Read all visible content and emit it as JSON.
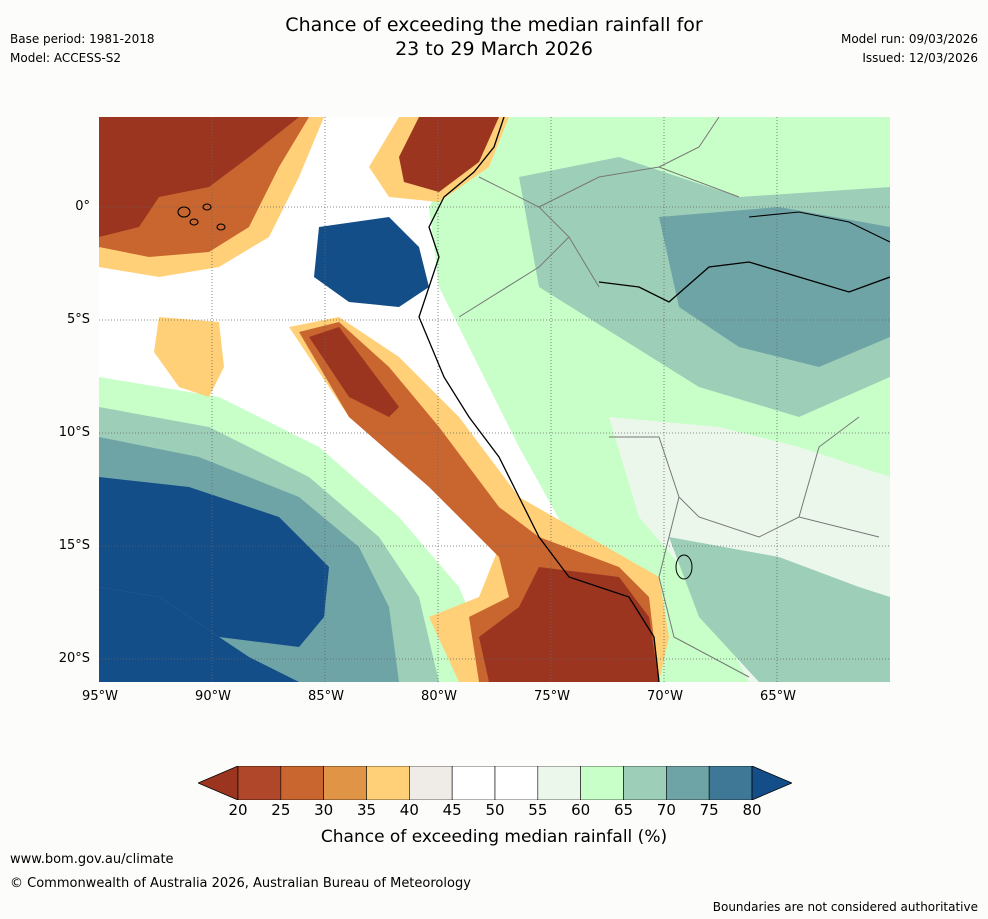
{
  "header": {
    "title_line1": "Chance of exceeding the median rainfall for",
    "title_line2": "23 to 29 March 2026",
    "base_period": "Base period: 1981-2018",
    "model": "Model: ACCESS-S2",
    "model_run": "Model run: 09/03/2026",
    "issued": "Issued: 12/03/2026"
  },
  "map": {
    "region": "western South America and eastern Pacific",
    "lon_range": [
      -95,
      -60.5
    ],
    "lat_range": [
      -21,
      4
    ],
    "lat_labels": [
      "0°",
      "5°S",
      "10°S",
      "15°S",
      "20°S"
    ],
    "lon_labels": [
      "95°W",
      "90°W",
      "85°W",
      "80°W",
      "75°W",
      "70°W",
      "65°W"
    ]
  },
  "colorbar": {
    "ticks": [
      "20",
      "25",
      "30",
      "35",
      "40",
      "45",
      "50",
      "55",
      "60",
      "65",
      "70",
      "75",
      "80"
    ],
    "colors": [
      "#9b3520",
      "#b0472a",
      "#c96630",
      "#e09546",
      "#ffd077",
      "#efebe7",
      "#ffffff",
      "#ffffff",
      "#ecf7ec",
      "#c8ffc8",
      "#9dcfb8",
      "#6fa4a6",
      "#3f7897",
      "#134e88"
    ],
    "title": "Chance of exceeding median rainfall (%)"
  },
  "footer": {
    "website": "www.bom.gov.au/climate",
    "copyright": "© Commonwealth of Australia 2026, Australian Bureau of Meteorology",
    "disclaimer": "Boundaries are not considered authoritative"
  }
}
